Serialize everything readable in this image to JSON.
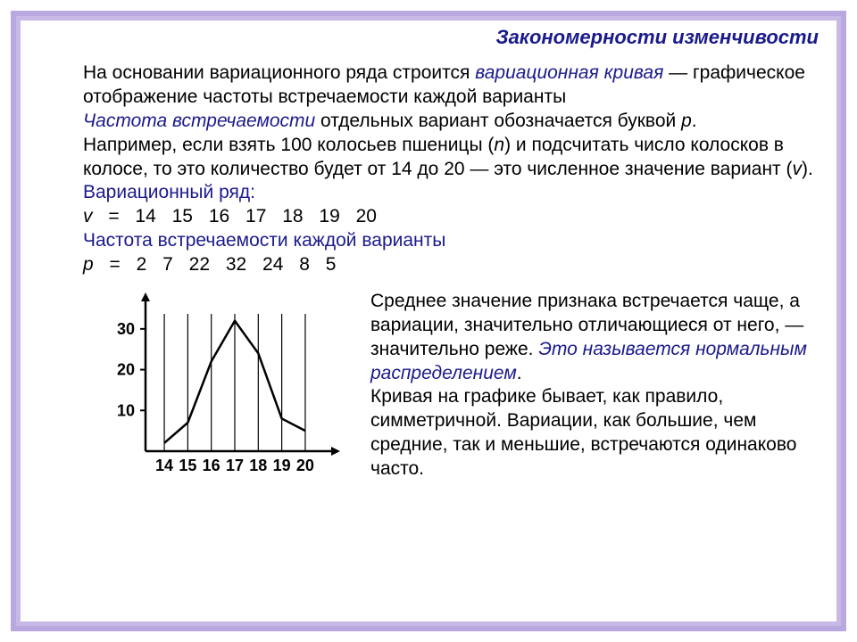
{
  "title": "Закономерности изменчивости",
  "p1a": "На основании вариационного ряда строится ",
  "p1_term": "вариационная кривая",
  "p1b": " — графическое отображение частоты встречаемости каждой варианты",
  "p2_term": "Частота встречаемости",
  "p2b": " отдельных вариант обозначается буквой ",
  "p2_var": "p",
  "p2c": ".",
  "p3a": "Например, если взять 100 колосьев пшеницы (",
  "p3_n": "n",
  "p3b": ") и подсчитать число колосков в колосе, то это количество будет от 14 до 20 — это численное значение вариант (",
  "p3_v": "v",
  "p3c": ").",
  "head_row": "Вариационный ряд:",
  "row_v_lhs": "v",
  "row_v_vals": " = 14  15  16  17  18  19  20",
  "head_freq": "Частота встречаемости каждой варианты",
  "row_p_lhs": "p",
  "row_p_vals": " =   2   7  22  32  24   8    5",
  "side1a": "Среднее значение признака встречается чаще, а вариации, значительно отличающиеся от него, — значительно реже. ",
  "side1_term": "Это называется нормальным распределением",
  "side1b": ".",
  "side2": "Кривая на графике бывает, как правило, симметричной. Вариации, как большие, чем средние, так и меньшие, встречаются одинаково часто.",
  "chart": {
    "type": "line",
    "x_values": [
      14,
      15,
      16,
      17,
      18,
      19,
      20
    ],
    "y_values": [
      2,
      7,
      22,
      32,
      24,
      8,
      5
    ],
    "xlim": [
      13.2,
      20.8
    ],
    "ylim": [
      0,
      35
    ],
    "yticks": [
      10,
      20,
      30
    ],
    "xtick_labels": [
      "14",
      "15",
      "16",
      "17",
      "18",
      "19",
      "20"
    ],
    "axis_color": "#000000",
    "line_color": "#000000",
    "grid_color": "#000000",
    "line_width": 2.5,
    "tick_fontsize": 18,
    "tick_fontweight": "bold",
    "background_color": "#ffffff"
  }
}
